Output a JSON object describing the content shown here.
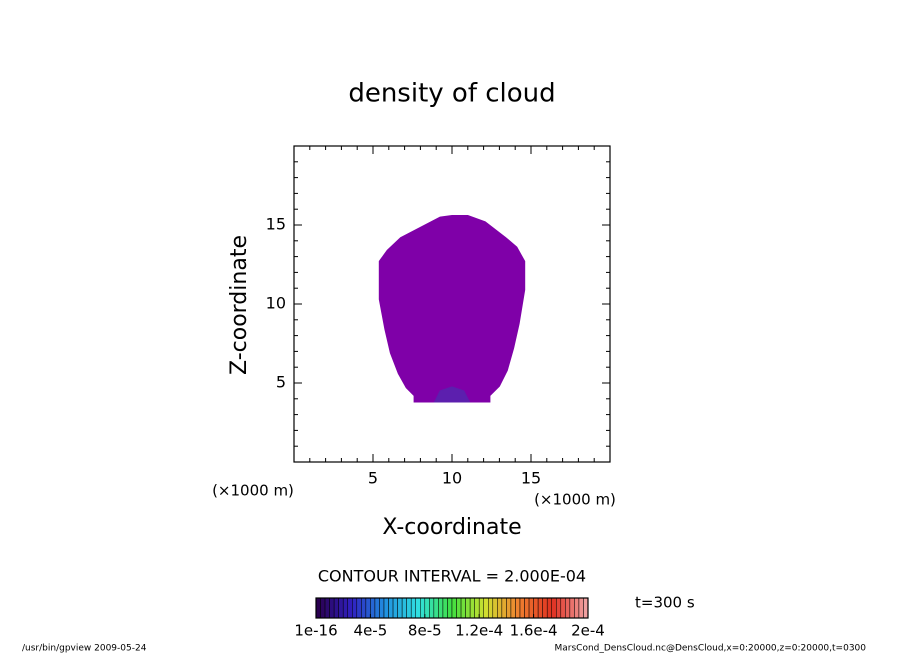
{
  "chart_data": {
    "type": "contour",
    "title": "density of cloud",
    "xlabel": "X-coordinate",
    "ylabel": "Z-coordinate",
    "x_unit": "(×1000 m)",
    "y_unit": "(×1000 m)",
    "xlim": [
      0,
      20
    ],
    "ylim": [
      0,
      20
    ],
    "xticks": [
      5,
      10,
      15
    ],
    "yticks": [
      5,
      10,
      15
    ],
    "regions": [
      {
        "color": "#7f00a8",
        "x": [
          10,
          9.25,
          7.9,
          6.75,
          5.9,
          5.4,
          5.4,
          5.75,
          6.1,
          6.6,
          7.1,
          7.6,
          7.6,
          12.4,
          12.4,
          13,
          13.5,
          13.9,
          14.25,
          14.6,
          14.6,
          14.1,
          13.4,
          12.1,
          11
        ],
        "z": [
          15.6,
          15.5,
          14.8,
          14.2,
          13.4,
          12.7,
          10.3,
          8.4,
          6.9,
          5.6,
          4.7,
          4.2,
          3.8,
          3.8,
          4.2,
          4.8,
          5.8,
          7.2,
          8.75,
          10.9,
          12.7,
          13.6,
          14.2,
          15.2,
          15.6
        ]
      },
      {
        "color": "#5c1fae",
        "x": [
          8.9,
          9.25,
          10,
          10.75,
          11.1
        ],
        "z": [
          3.8,
          4.5,
          4.75,
          4.5,
          3.8
        ]
      }
    ],
    "contour_interval": "CONTOUR INTERVAL = 2.000E-04",
    "time_label": "t=300 s",
    "colorbar": {
      "colors": [
        "#2a0050",
        "#3020c0",
        "#2090e0",
        "#30e0e0",
        "#40e040",
        "#d0e030",
        "#f08030",
        "#e03020",
        "#f0a0a0"
      ],
      "lim": [
        1e-16,
        0.0002
      ],
      "ticks": [
        {
          "value": 1e-16,
          "label": "1e-16"
        },
        {
          "value": 4e-05,
          "label": "4e-5"
        },
        {
          "value": 8e-05,
          "label": "8e-5"
        },
        {
          "value": 0.00012,
          "label": "1.2e-4"
        },
        {
          "value": 0.00016,
          "label": "1.6e-4"
        },
        {
          "value": 0.0002,
          "label": "2e-4"
        }
      ]
    },
    "footer_left": "/usr/bin/gpview  2009-05-24",
    "footer_right": "MarsCond_DensCloud.nc@DensCloud,x=0:20000,z=0:20000,t=0300"
  }
}
